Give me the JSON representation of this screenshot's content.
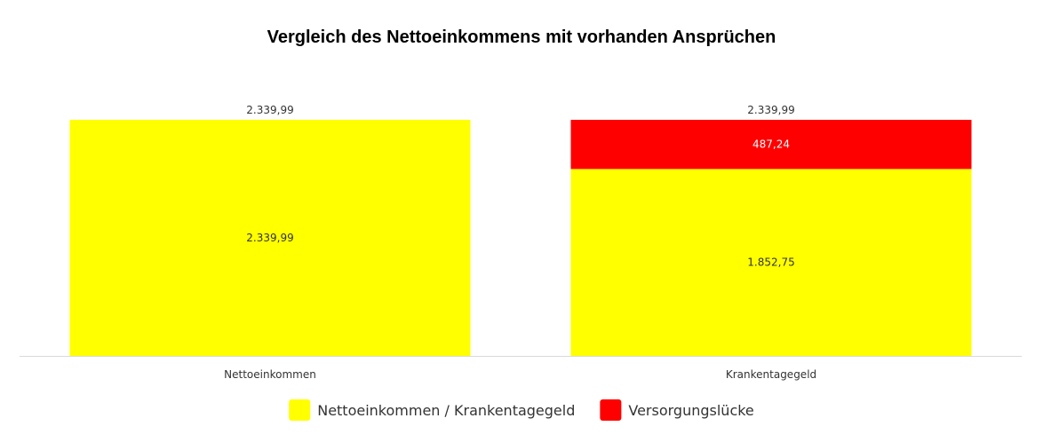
{
  "chart_data": {
    "type": "bar",
    "stacked": true,
    "title": "Vergleich des Nettoeinkommens mit vorhanden Ansprüchen",
    "categories": [
      "Nettoeinkommen",
      "Krankentagegeld"
    ],
    "series": [
      {
        "name": "Nettoeinkommen / Krankentagegeld",
        "color": "#FFFF00",
        "values": [
          2339.99,
          1852.75
        ],
        "labels": [
          "2.339,99",
          "1.852,75"
        ],
        "label_color": "#333333"
      },
      {
        "name": "Versorgungslücke",
        "color": "#FF0000",
        "values": [
          0,
          487.24
        ],
        "labels": [
          "",
          "487,24"
        ],
        "label_color": "#FFFFFF"
      }
    ],
    "totals": [
      2339.99,
      2339.99
    ],
    "total_labels": [
      "2.339,99",
      "2.339,99"
    ],
    "ylim": [
      0,
      2339.99
    ],
    "xlabel": "",
    "ylabel": "",
    "grid": false,
    "legend_position": "bottom-center",
    "axis_color": "#d9d9d9"
  }
}
